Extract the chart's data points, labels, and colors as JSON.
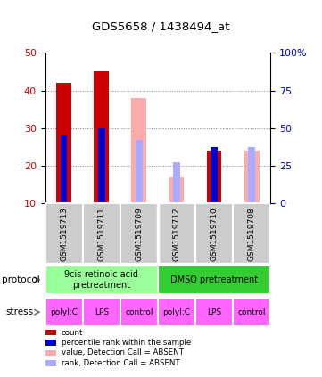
{
  "title": "GDS5658 / 1438494_at",
  "samples": [
    "GSM1519713",
    "GSM1519711",
    "GSM1519709",
    "GSM1519712",
    "GSM1519710",
    "GSM1519708"
  ],
  "red_bars": [
    42,
    45,
    null,
    null,
    24,
    null
  ],
  "blue_bars": [
    28,
    30,
    null,
    null,
    25,
    null
  ],
  "pink_bars": [
    null,
    null,
    38,
    17,
    null,
    24
  ],
  "light_blue_bars": [
    null,
    null,
    27,
    21,
    null,
    25
  ],
  "ylim": [
    10,
    50
  ],
  "y_left_ticks": [
    10,
    20,
    30,
    40,
    50
  ],
  "y_right_ticks": [
    0,
    25,
    50,
    75,
    100
  ],
  "y_left_label_color": "#cc0000",
  "y_right_label_color": "#0000cc",
  "protocol_labels": [
    "9cis-retinoic acid\npretreatment",
    "DMSO pretreatment"
  ],
  "protocol_color_left": "#99ff99",
  "protocol_color_right": "#33cc33",
  "stress_labels": [
    "polyI:C",
    "LPS",
    "control",
    "polyI:C",
    "LPS",
    "control"
  ],
  "stress_color": "#ff66ff",
  "bar_width": 0.4,
  "bg_color": "#cccccc",
  "legend_items": [
    {
      "color": "#cc0000",
      "label": "count"
    },
    {
      "color": "#0000cc",
      "label": "percentile rank within the sample"
    },
    {
      "color": "#ffaaaa",
      "label": "value, Detection Call = ABSENT"
    },
    {
      "color": "#aaaaff",
      "label": "rank, Detection Call = ABSENT"
    }
  ]
}
